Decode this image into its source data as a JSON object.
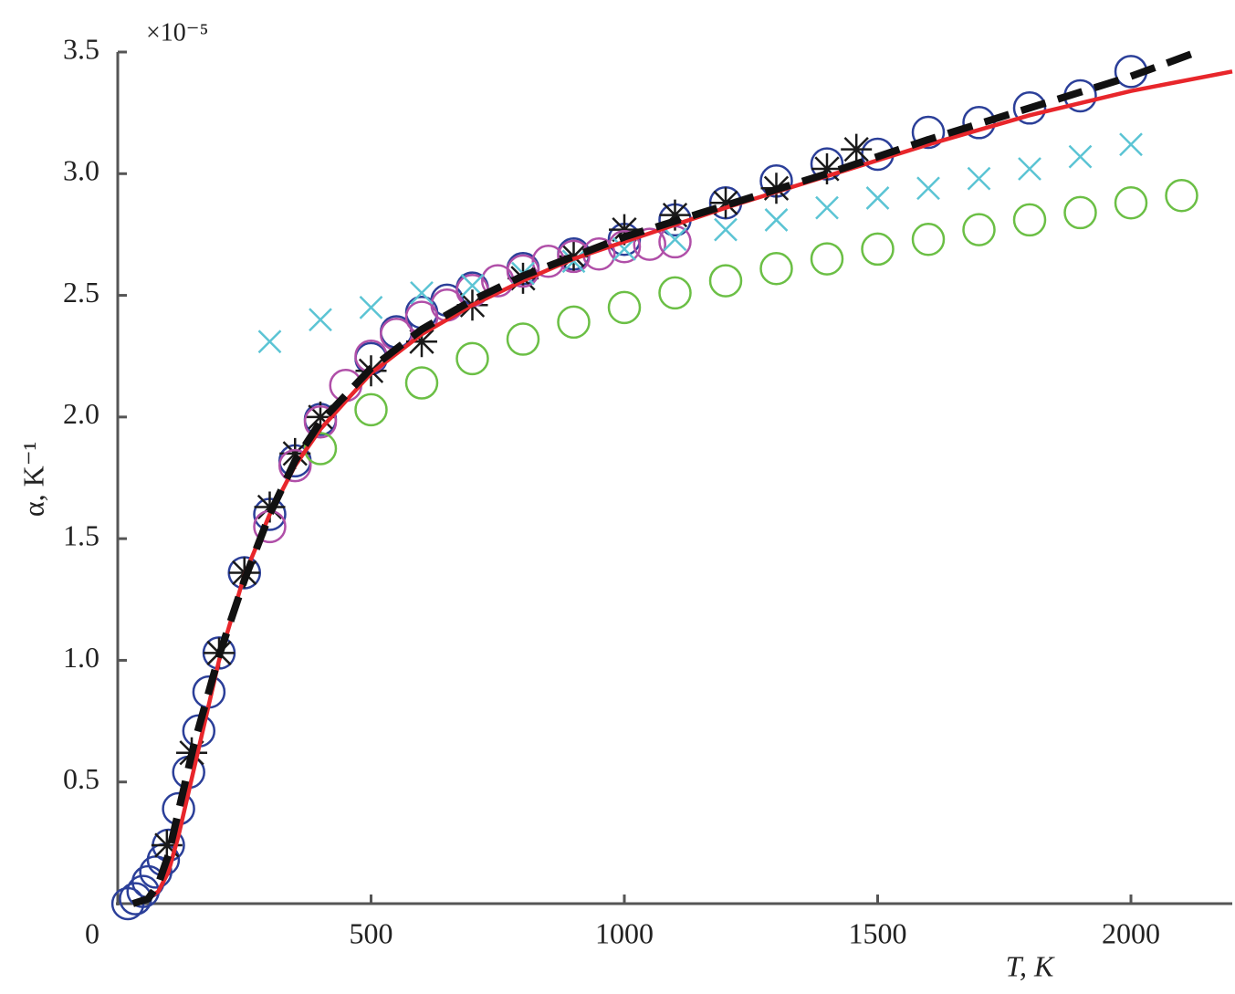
{
  "chart_data": {
    "type": "scatter",
    "annotations": [
      "×10⁻⁵"
    ],
    "xlabel": "T, K",
    "ylabel": "α, K⁻¹",
    "xlim": [
      0,
      2200
    ],
    "ylim": [
      0,
      3.5
    ],
    "xticks": [
      0,
      500,
      1000,
      1500,
      2000
    ],
    "yticks": [
      0.5,
      {
        "value": 1,
        "label": "1.0"
      },
      1.5,
      {
        "value": 2,
        "label": "2.0"
      },
      2.5,
      {
        "value": 3,
        "label": "3.0"
      },
      3.5
    ],
    "grid": false,
    "series": [
      {
        "color": "#2b3f99",
        "marker": "circle",
        "x": [
          20,
          35,
          50,
          60,
          75,
          90,
          100,
          120,
          140,
          160,
          180,
          200,
          250,
          300,
          350,
          400,
          500,
          550,
          600,
          650,
          700,
          800,
          900,
          1000,
          1100,
          1200,
          1300,
          1400,
          1500,
          1600,
          1700,
          1800,
          1900,
          2000
        ],
        "values": [
          0.0,
          0.02,
          0.05,
          0.09,
          0.13,
          0.18,
          0.24,
          0.39,
          0.54,
          0.71,
          0.87,
          1.03,
          1.36,
          1.6,
          1.82,
          1.99,
          2.24,
          2.35,
          2.43,
          2.48,
          2.53,
          2.61,
          2.67,
          2.73,
          2.81,
          2.88,
          2.97,
          3.04,
          3.08,
          3.17,
          3.21,
          3.27,
          3.32,
          3.42
        ]
      },
      {
        "color": "#1a1a1a",
        "marker": "asterisk",
        "x": [
          97,
          146,
          200,
          250,
          300,
          350,
          400,
          500,
          600,
          700,
          800,
          900,
          1000,
          1100,
          1200,
          1300,
          1400,
          1458
        ],
        "values": [
          0.24,
          0.62,
          1.03,
          1.36,
          1.63,
          1.85,
          2.0,
          2.19,
          2.31,
          2.46,
          2.57,
          2.66,
          2.77,
          2.83,
          2.88,
          2.94,
          3.02,
          3.1
        ]
      },
      {
        "color": "#b04fa8",
        "marker": "circle",
        "x": [
          300,
          350,
          400,
          450,
          500,
          550,
          600,
          650,
          700,
          750,
          800,
          850,
          900,
          950,
          1000,
          1050,
          1100
        ],
        "values": [
          1.55,
          1.8,
          1.98,
          2.13,
          2.25,
          2.34,
          2.41,
          2.46,
          2.52,
          2.56,
          2.6,
          2.64,
          2.66,
          2.67,
          2.7,
          2.71,
          2.72
        ]
      },
      {
        "color": "#5bc4d4",
        "marker": "x",
        "x": [
          300,
          400,
          500,
          600,
          700,
          800,
          900,
          1000,
          1100,
          1200,
          1300,
          1400,
          1500,
          1600,
          1700,
          1800,
          1900,
          2000
        ],
        "values": [
          2.31,
          2.4,
          2.45,
          2.51,
          2.54,
          2.59,
          2.64,
          2.69,
          2.73,
          2.77,
          2.81,
          2.86,
          2.9,
          2.94,
          2.98,
          3.02,
          3.07,
          3.12
        ]
      },
      {
        "color": "#6bbf45",
        "marker": "circle",
        "x": [
          400,
          500,
          600,
          700,
          800,
          900,
          1000,
          1100,
          1200,
          1300,
          1400,
          1500,
          1600,
          1700,
          1800,
          1900,
          2000,
          2100
        ],
        "values": [
          1.87,
          2.03,
          2.14,
          2.24,
          2.32,
          2.39,
          2.45,
          2.51,
          2.56,
          2.61,
          2.65,
          2.69,
          2.73,
          2.77,
          2.81,
          2.84,
          2.88,
          2.91
        ]
      },
      {
        "color": "#e8262b",
        "marker": "line",
        "x": [
          60,
          80,
          100,
          120,
          150,
          200,
          250,
          300,
          350,
          400,
          500,
          600,
          700,
          800,
          900,
          1000,
          1200,
          1400,
          1600,
          1800,
          2000,
          2200
        ],
        "values": [
          0.02,
          0.05,
          0.13,
          0.28,
          0.55,
          1.0,
          1.35,
          1.6,
          1.8,
          1.95,
          2.18,
          2.34,
          2.46,
          2.56,
          2.65,
          2.72,
          2.86,
          2.99,
          3.12,
          3.24,
          3.34,
          3.42
        ]
      },
      {
        "color": "#111111",
        "marker": "dashed",
        "x": [
          30,
          60,
          80,
          100,
          120,
          150,
          200,
          250,
          300,
          350,
          400,
          500,
          600,
          700,
          800,
          900,
          1000,
          1200,
          1400,
          1600,
          1800,
          2000,
          2130
        ],
        "values": [
          0.0,
          0.02,
          0.08,
          0.2,
          0.38,
          0.65,
          1.02,
          1.33,
          1.6,
          1.82,
          1.98,
          2.2,
          2.36,
          2.48,
          2.58,
          2.66,
          2.74,
          2.87,
          3.0,
          3.14,
          3.27,
          3.4,
          3.5
        ]
      }
    ]
  }
}
